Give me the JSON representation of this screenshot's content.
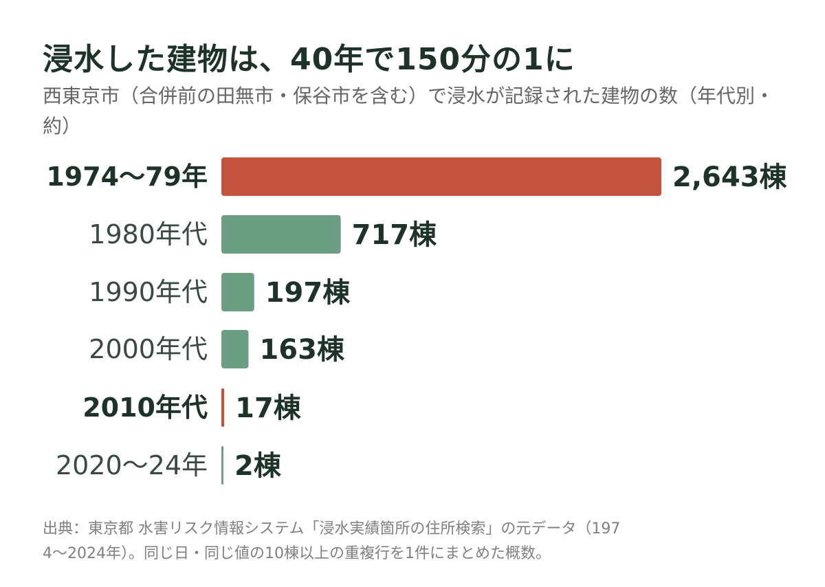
{
  "title": "浸水した建物は、40年で150分の1に",
  "subtitle": "西東京市（合併前の田無市・保谷市を含む）で浸水が記録された建物の数（年代別・約）",
  "source_line1": "出典：東京都 水害リスク情報システム「浸水実績箇所の住所検索」の元データ（197",
  "source_line2": "4〜2024年）。同じ日・同じ値の10棟以上の重複行を1件にまとめた概数。",
  "colors": {
    "highlight": "#c4533d",
    "normal": "#6c9e84",
    "text": "#1e3328"
  },
  "chart_data": {
    "type": "bar",
    "orientation": "horizontal",
    "unit": "棟",
    "categories": [
      "1974〜79年",
      "1980年代",
      "1990年代",
      "2000年代",
      "2010年代",
      "2020〜24年"
    ],
    "values": [
      2643,
      717,
      197,
      163,
      17,
      2
    ],
    "value_labels": [
      "2,643棟",
      "717棟",
      "197棟",
      "163棟",
      "17棟",
      "2棟"
    ],
    "highlighted": [
      true,
      false,
      false,
      false,
      true,
      false
    ],
    "bold_category": [
      true,
      false,
      false,
      false,
      true,
      false
    ],
    "xlim": [
      0,
      2643
    ],
    "grid": false
  }
}
